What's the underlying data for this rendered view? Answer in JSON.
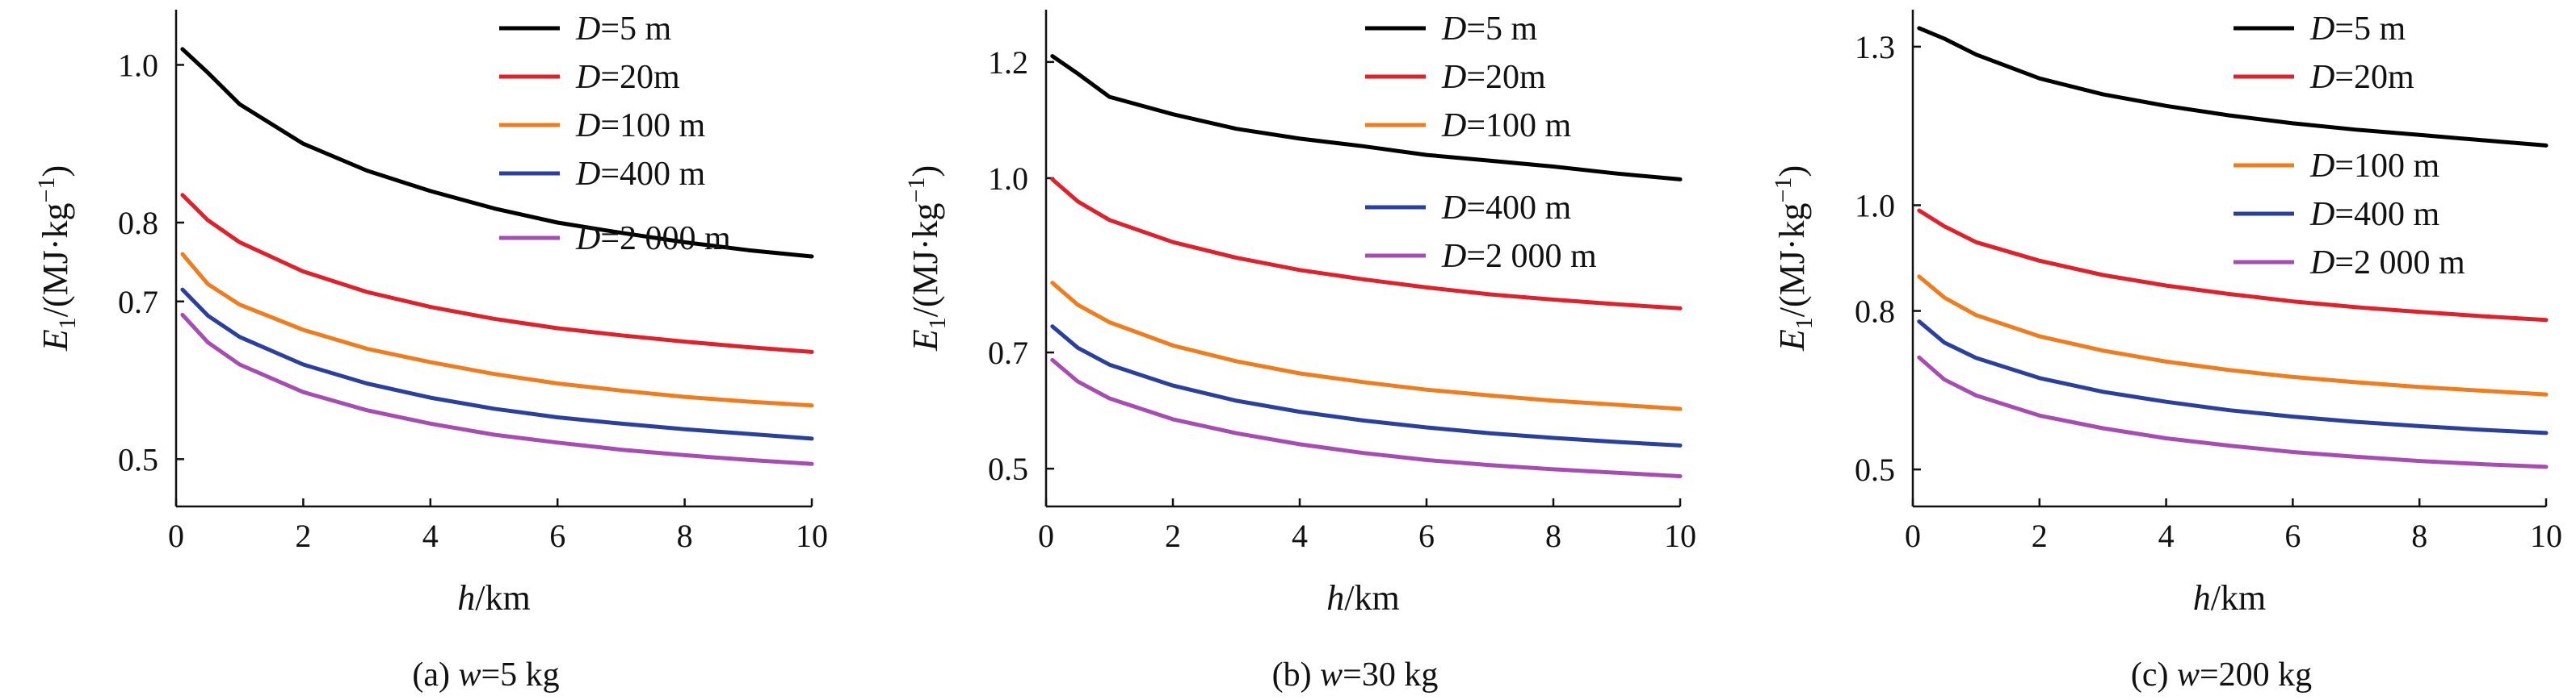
{
  "chart_data": [
    {
      "type": "line",
      "caption_prefix": "(a) ",
      "caption_var": "w",
      "caption_value": "=5 kg",
      "xlabel_var": "h",
      "xlabel_unit": "/km",
      "ylabel_var": "E",
      "ylabel_sub": "1",
      "ylabel_unit_pre": "/(MJ·kg",
      "ylabel_sup": "−1",
      "ylabel_unit_post": ")",
      "xlim": [
        0,
        10
      ],
      "ylim": [
        0.44,
        1.07
      ],
      "xticks": [
        0,
        2,
        4,
        6,
        8,
        10
      ],
      "xtick_labels": [
        "0",
        "2",
        "4",
        "6",
        "8",
        "10"
      ],
      "yticks": [
        0.5,
        0.7,
        0.8,
        1.0
      ],
      "ytick_labels": [
        "0.5",
        "0.7",
        "0.8",
        "1.0"
      ],
      "legend_position": "top-right",
      "x": [
        0.1,
        0.5,
        1,
        2,
        3,
        4,
        5,
        6,
        7,
        8,
        9,
        10
      ],
      "series": [
        {
          "name_var": "D",
          "name_value": "=5 m",
          "color": "#000000",
          "values": [
            1.02,
            0.99,
            0.95,
            0.9,
            0.866,
            0.84,
            0.818,
            0.8,
            0.787,
            0.775,
            0.765,
            0.757
          ]
        },
        {
          "name_var": "D",
          "name_value": "=20m",
          "color": "#e0202a",
          "values": [
            0.835,
            0.803,
            0.775,
            0.738,
            0.712,
            0.693,
            0.678,
            0.666,
            0.657,
            0.649,
            0.642,
            0.636
          ]
        },
        {
          "name_var": "D",
          "name_value": "=100 m",
          "color": "#f07c1e",
          "values": [
            0.76,
            0.722,
            0.696,
            0.664,
            0.64,
            0.623,
            0.608,
            0.596,
            0.587,
            0.579,
            0.573,
            0.568
          ]
        },
        {
          "name_var": "D",
          "name_value": "=400 m",
          "color": "#2a3f9e",
          "values": [
            0.715,
            0.682,
            0.655,
            0.62,
            0.596,
            0.578,
            0.564,
            0.553,
            0.545,
            0.538,
            0.532,
            0.526
          ]
        },
        {
          "name_var": "D",
          "name_value": "=2 000 m",
          "color": "#a74cb3",
          "values": [
            0.683,
            0.648,
            0.62,
            0.585,
            0.562,
            0.545,
            0.531,
            0.521,
            0.512,
            0.505,
            0.499,
            0.494
          ]
        }
      ]
    },
    {
      "type": "line",
      "caption_prefix": "(b) ",
      "caption_var": "w",
      "caption_value": "=30 kg",
      "xlabel_var": "h",
      "xlabel_unit": "/km",
      "ylabel_var": "E",
      "ylabel_sub": "1",
      "ylabel_unit_pre": "/(MJ·kg",
      "ylabel_sup": "−1",
      "ylabel_unit_post": ")",
      "xlim": [
        0,
        10
      ],
      "ylim": [
        0.435,
        1.29
      ],
      "xticks": [
        0,
        2,
        4,
        6,
        8,
        10
      ],
      "xtick_labels": [
        "0",
        "2",
        "4",
        "6",
        "8",
        "10"
      ],
      "yticks": [
        0.5,
        0.7,
        1.0,
        1.2
      ],
      "ytick_labels": [
        "0.5",
        "0.7",
        "1.0",
        "1.2"
      ],
      "legend_position": "top-right",
      "x": [
        0.1,
        0.5,
        1,
        2,
        3,
        4,
        5,
        6,
        7,
        8,
        9,
        10
      ],
      "series": [
        {
          "name_var": "D",
          "name_value": "=5 m",
          "color": "#000000",
          "values": [
            1.21,
            1.18,
            1.14,
            1.11,
            1.085,
            1.068,
            1.055,
            1.04,
            1.03,
            1.02,
            1.008,
            0.998
          ]
        },
        {
          "name_var": "D",
          "name_value": "=20m",
          "color": "#e0202a",
          "values": [
            0.998,
            0.96,
            0.928,
            0.89,
            0.863,
            0.842,
            0.826,
            0.812,
            0.8,
            0.791,
            0.783,
            0.776
          ]
        },
        {
          "name_var": "D",
          "name_value": "=100 m",
          "color": "#f07c1e",
          "values": [
            0.82,
            0.782,
            0.752,
            0.712,
            0.685,
            0.664,
            0.649,
            0.636,
            0.626,
            0.617,
            0.61,
            0.603
          ]
        },
        {
          "name_var": "D",
          "name_value": "=400 m",
          "color": "#2a3f9e",
          "values": [
            0.745,
            0.708,
            0.679,
            0.643,
            0.617,
            0.598,
            0.583,
            0.571,
            0.561,
            0.553,
            0.546,
            0.54
          ]
        },
        {
          "name_var": "D",
          "name_value": "=2 000 m",
          "color": "#a74cb3",
          "values": [
            0.687,
            0.65,
            0.621,
            0.585,
            0.561,
            0.542,
            0.527,
            0.515,
            0.506,
            0.499,
            0.493,
            0.487
          ]
        }
      ]
    },
    {
      "type": "line",
      "caption_prefix": "(c) ",
      "caption_var": "w",
      "caption_value": "=200 kg",
      "xlabel_var": "h",
      "xlabel_unit": "/km",
      "ylabel_var": "E",
      "ylabel_sub": "1",
      "ylabel_unit_pre": "/(MJ·kg",
      "ylabel_sup": "−1",
      "ylabel_unit_post": ")",
      "xlim": [
        0,
        10
      ],
      "ylim": [
        0.43,
        1.37
      ],
      "xticks": [
        0,
        2,
        4,
        6,
        8,
        10
      ],
      "xtick_labels": [
        "0",
        "2",
        "4",
        "6",
        "8",
        "10"
      ],
      "yticks": [
        0.5,
        0.8,
        1.0,
        1.3
      ],
      "ytick_labels": [
        "0.5",
        "0.8",
        "1.0",
        "1.3"
      ],
      "legend_position": "top-right",
      "x": [
        0.1,
        0.5,
        1,
        2,
        3,
        4,
        5,
        6,
        7,
        8,
        9,
        10
      ],
      "series": [
        {
          "name_var": "D",
          "name_value": "=5 m",
          "color": "#000000",
          "values": [
            1.335,
            1.315,
            1.285,
            1.24,
            1.21,
            1.188,
            1.17,
            1.155,
            1.143,
            1.133,
            1.123,
            1.113
          ]
        },
        {
          "name_var": "D",
          "name_value": "=20m",
          "color": "#e0202a",
          "values": [
            0.99,
            0.96,
            0.93,
            0.895,
            0.868,
            0.848,
            0.832,
            0.818,
            0.807,
            0.798,
            0.79,
            0.783
          ]
        },
        {
          "name_var": "D",
          "name_value": "=100 m",
          "color": "#f07c1e",
          "values": [
            0.865,
            0.825,
            0.792,
            0.752,
            0.725,
            0.704,
            0.688,
            0.675,
            0.665,
            0.656,
            0.649,
            0.642
          ]
        },
        {
          "name_var": "D",
          "name_value": "=400 m",
          "color": "#2a3f9e",
          "values": [
            0.78,
            0.74,
            0.711,
            0.673,
            0.647,
            0.628,
            0.612,
            0.6,
            0.59,
            0.582,
            0.575,
            0.569
          ]
        },
        {
          "name_var": "D",
          "name_value": "=2 000 m",
          "color": "#a74cb3",
          "values": [
            0.712,
            0.67,
            0.64,
            0.602,
            0.578,
            0.559,
            0.545,
            0.533,
            0.524,
            0.516,
            0.51,
            0.505
          ]
        }
      ]
    }
  ]
}
